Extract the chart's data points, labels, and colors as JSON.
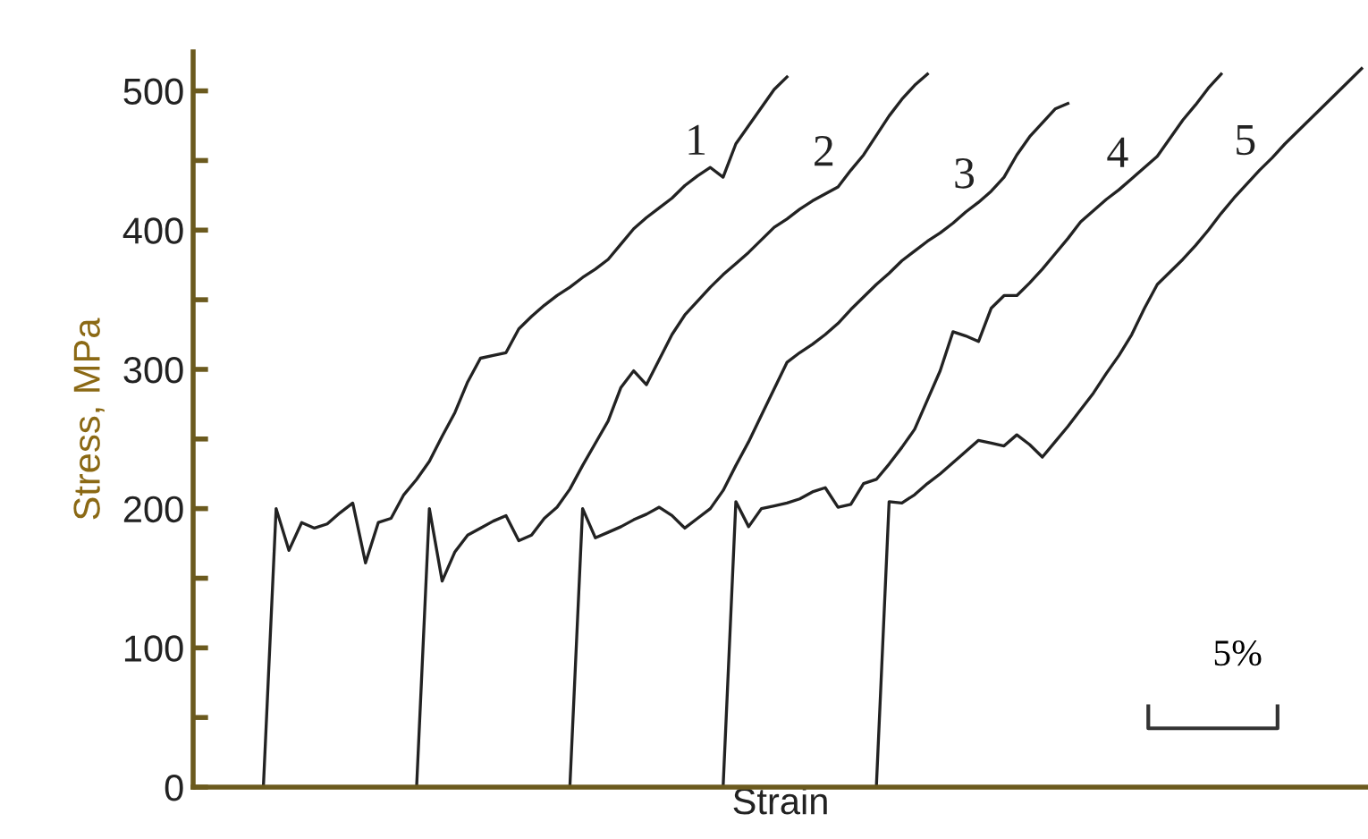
{
  "chart_data": {
    "type": "line",
    "xlabel": "Strain",
    "ylabel": "Stress, MPa",
    "categories": [
      null,
      null,
      null,
      null,
      null,
      null,
      null,
      null,
      null,
      null,
      null,
      null,
      null,
      null,
      null,
      null,
      null,
      null,
      null,
      null,
      null,
      null,
      null,
      null,
      null,
      null,
      null,
      null,
      null,
      null,
      null,
      null,
      null,
      null,
      null,
      null,
      null,
      null,
      null,
      null,
      null,
      null,
      null,
      null,
      null,
      null,
      null,
      null,
      null,
      null,
      null,
      null,
      null,
      null,
      null,
      null,
      null,
      null,
      null,
      null,
      null,
      null,
      null,
      null,
      null,
      null,
      null,
      null,
      null,
      null,
      null,
      null,
      null,
      null,
      null,
      null,
      null,
      null,
      null,
      null,
      null,
      null,
      null,
      null,
      null,
      null,
      null,
      null,
      null,
      null,
      null,
      null
    ],
    "ylim": [
      0,
      528
    ],
    "yticks": [
      0,
      {
        "value": 50,
        "label": null
      },
      100,
      {
        "value": 150,
        "label": null
      },
      200,
      {
        "value": 250,
        "label": null
      },
      300,
      {
        "value": 350,
        "label": null
      },
      400,
      {
        "value": 450,
        "label": null
      },
      500
    ],
    "tick_labels": "y",
    "grid": false,
    "legend": false,
    "marker": "none",
    "line_style": "solid",
    "annotations": [
      "5%"
    ],
    "series": [
      {
        "name": "1",
        "color": "#222222",
        "values": [
          null,
          null,
          null,
          null,
          null,
          0,
          200,
          170,
          190,
          186,
          189,
          197,
          204,
          161,
          190,
          193,
          210,
          221,
          234,
          252,
          269,
          291,
          308,
          310,
          312,
          329,
          338,
          346,
          353,
          359,
          366,
          372,
          379,
          390,
          401,
          409,
          416,
          423,
          432,
          439,
          445,
          438,
          462,
          475,
          488,
          501,
          510,
          null,
          null,
          null,
          null,
          null,
          null,
          null,
          null,
          null,
          null,
          null,
          null,
          null,
          null,
          null,
          null,
          null,
          null,
          null,
          null,
          null,
          null,
          null,
          null,
          null,
          null,
          null,
          null,
          null,
          null,
          null,
          null,
          null,
          null,
          null,
          null,
          null,
          null,
          null,
          null,
          null,
          null,
          null,
          null,
          null
        ]
      },
      {
        "name": "2",
        "color": "#222222",
        "values": [
          null,
          null,
          null,
          null,
          null,
          null,
          null,
          null,
          null,
          null,
          null,
          null,
          null,
          null,
          null,
          null,
          null,
          0,
          200,
          148,
          169,
          181,
          186,
          191,
          195,
          177,
          181,
          193,
          201,
          214,
          231,
          247,
          263,
          287,
          299,
          289,
          307,
          325,
          339,
          349,
          359,
          368,
          376,
          384,
          393,
          402,
          408,
          415,
          421,
          426,
          431,
          443,
          454,
          468,
          482,
          494,
          504,
          512,
          null,
          null,
          null,
          null,
          null,
          null,
          null,
          null,
          null,
          null,
          null,
          null,
          null,
          null,
          null,
          null,
          null,
          null,
          null,
          null,
          null,
          null,
          null,
          null,
          null,
          null,
          null,
          null,
          null,
          null,
          null,
          null,
          null,
          null
        ]
      },
      {
        "name": "3",
        "color": "#222222",
        "values": [
          null,
          null,
          null,
          null,
          null,
          null,
          null,
          null,
          null,
          null,
          null,
          null,
          null,
          null,
          null,
          null,
          null,
          null,
          null,
          null,
          null,
          null,
          null,
          null,
          null,
          null,
          null,
          null,
          null,
          0,
          200,
          179,
          183,
          187,
          192,
          196,
          201,
          195,
          186,
          193,
          200,
          213,
          231,
          248,
          267,
          286,
          305,
          312,
          318,
          325,
          333,
          343,
          352,
          361,
          369,
          378,
          385,
          392,
          398,
          405,
          413,
          420,
          428,
          438,
          454,
          467,
          477,
          487,
          491,
          null,
          null,
          null,
          null,
          null,
          null,
          null,
          null,
          null,
          null,
          null,
          null,
          null,
          null,
          null,
          null,
          null,
          null,
          null,
          null,
          null,
          null,
          null
        ]
      },
      {
        "name": "4",
        "color": "#222222",
        "values": [
          null,
          null,
          null,
          null,
          null,
          null,
          null,
          null,
          null,
          null,
          null,
          null,
          null,
          null,
          null,
          null,
          null,
          null,
          null,
          null,
          null,
          null,
          null,
          null,
          null,
          null,
          null,
          null,
          null,
          null,
          null,
          null,
          null,
          null,
          null,
          null,
          null,
          null,
          null,
          null,
          null,
          0,
          205,
          187,
          200,
          202,
          204,
          207,
          212,
          215,
          201,
          203,
          218,
          221,
          232,
          244,
          257,
          278,
          299,
          327,
          324,
          320,
          344,
          353,
          353,
          362,
          372,
          383,
          394,
          406,
          414,
          422,
          429,
          437,
          445,
          453,
          466,
          479,
          490,
          502,
          512,
          null,
          null,
          null,
          null,
          null,
          null,
          null,
          null,
          null,
          null,
          null
        ]
      },
      {
        "name": "5",
        "color": "#222222",
        "values": [
          null,
          null,
          null,
          null,
          null,
          null,
          null,
          null,
          null,
          null,
          null,
          null,
          null,
          null,
          null,
          null,
          null,
          null,
          null,
          null,
          null,
          null,
          null,
          null,
          null,
          null,
          null,
          null,
          null,
          null,
          null,
          null,
          null,
          null,
          null,
          null,
          null,
          null,
          null,
          null,
          null,
          null,
          null,
          null,
          null,
          null,
          null,
          null,
          null,
          null,
          null,
          null,
          null,
          0,
          205,
          204,
          210,
          218,
          225,
          233,
          241,
          249,
          247,
          245,
          253,
          246,
          237,
          248,
          259,
          271,
          283,
          297,
          310,
          325,
          344,
          361,
          370,
          379,
          389,
          400,
          412,
          423,
          433,
          443,
          452,
          462,
          471,
          480,
          489,
          498,
          507,
          516
        ]
      }
    ]
  }
}
